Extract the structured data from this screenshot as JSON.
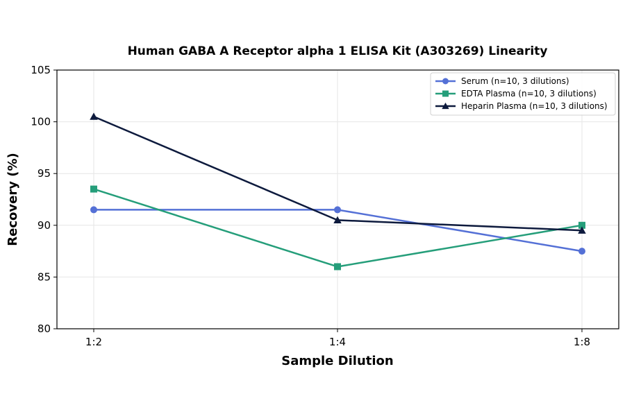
{
  "chart_data": {
    "type": "line",
    "title": "Human GABA A Receptor alpha 1 ELISA Kit (A303269) Linearity",
    "xlabel": "Sample Dilution",
    "ylabel": "Recovery (%)",
    "categories": [
      "1:2",
      "1:4",
      "1:8"
    ],
    "ylim": [
      80,
      105
    ],
    "yticks": [
      80,
      85,
      90,
      95,
      100,
      105
    ],
    "grid": true,
    "legend_position": "top-right",
    "series": [
      {
        "name": "Serum (n=10, 3 dilutions)",
        "values": [
          91.5,
          91.5,
          87.5
        ],
        "color": "#5470d6",
        "marker": "circle"
      },
      {
        "name": "EDTA Plasma (n=10, 3 dilutions)",
        "values": [
          93.5,
          86.0,
          90.0
        ],
        "color": "#259e7a",
        "marker": "square"
      },
      {
        "name": "Heparin Plasma (n=10, 3 dilutions)",
        "values": [
          100.5,
          90.5,
          89.5
        ],
        "color": "#0d1a3d",
        "marker": "triangle"
      }
    ]
  }
}
